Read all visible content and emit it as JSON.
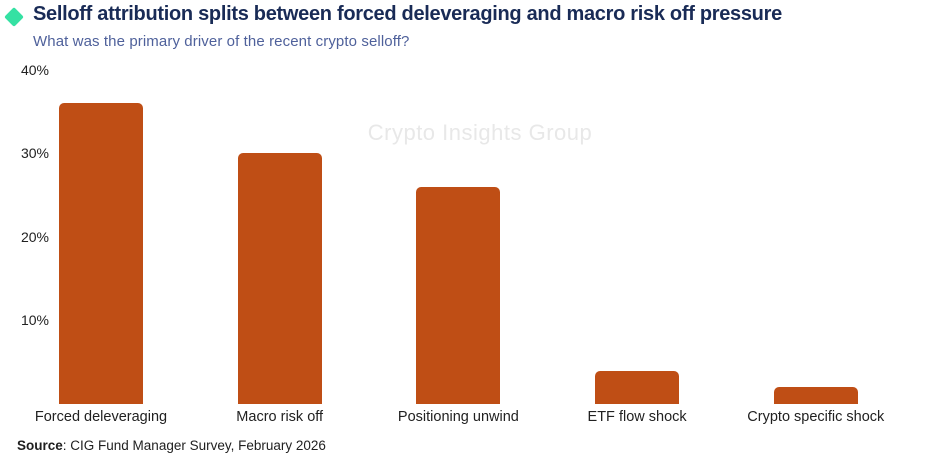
{
  "header": {
    "title": "Selloff attribution splits between forced deleveraging and macro risk off pressure",
    "subtitle": "What was the primary driver of the recent crypto selloff?",
    "title_color": "#192B56",
    "subtitle_color": "#4F619B",
    "accent_color": "#35E1A3"
  },
  "watermark": {
    "text": "Crypto Insights Group",
    "color": "#E8E8E8"
  },
  "source": {
    "label": "Source",
    "text": ": CIG Fund Manager Survey, February 2026"
  },
  "chart_data": {
    "type": "bar",
    "categories": [
      "Forced deleveraging",
      "Macro risk off",
      "Positioning unwind",
      "ETF flow shock",
      "Crypto specific shock"
    ],
    "values": [
      36,
      30,
      26,
      4,
      2
    ],
    "unit": "%",
    "title": "Selloff attribution splits between forced deleveraging and macro risk off pressure",
    "subtitle": "What was the primary driver of the recent crypto selloff?",
    "xlabel": "",
    "ylabel": "",
    "ylim": [
      0,
      40
    ],
    "yticks": [
      10,
      20,
      30,
      40
    ],
    "grid": false,
    "legend": false,
    "bar_color": "#BF4E15"
  }
}
